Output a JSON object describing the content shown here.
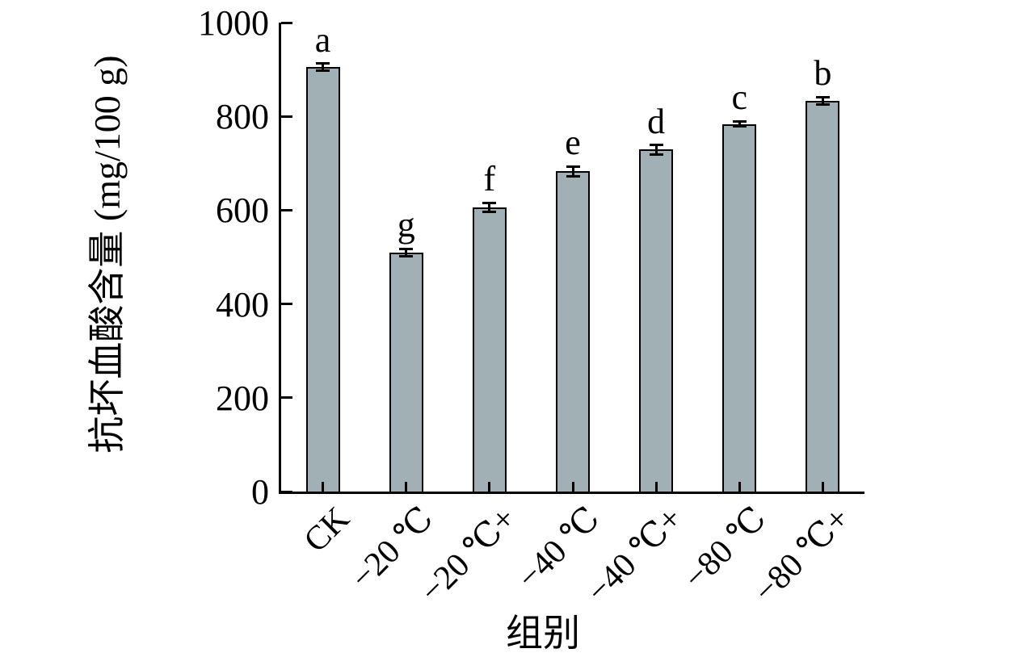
{
  "chart_data": {
    "type": "bar",
    "title": "",
    "xlabel": "组别",
    "ylabel": "抗坏血酸含量 (mg/100 g)",
    "categories": [
      "CK",
      "−20 ℃",
      "−20 ℃+",
      "−40 ℃",
      "−40 ℃+",
      "−80 ℃",
      "−80 ℃+"
    ],
    "values": [
      905,
      510,
      606,
      683,
      729,
      784,
      833
    ],
    "errors": [
      8,
      8,
      10,
      10,
      10,
      6,
      8
    ],
    "significance_letters": [
      "a",
      "g",
      "f",
      "e",
      "d",
      "c",
      "b"
    ],
    "yticks": [
      0,
      200,
      400,
      600,
      800,
      1000
    ],
    "ylim": [
      0,
      1000
    ],
    "grid": "off",
    "legend": "none",
    "bar_fill_color": "#a0b0b4",
    "bar_border_color": "#000000",
    "axis_color": "#000000",
    "x_label_rotation_deg": 45
  }
}
